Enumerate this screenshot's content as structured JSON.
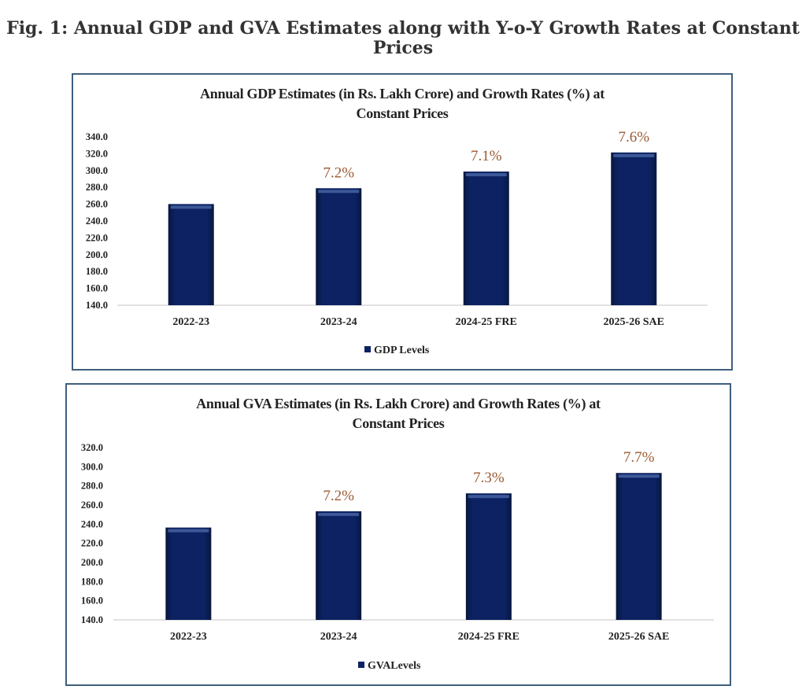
{
  "figure_title": "Fig. 1: Annual GDP and GVA Estimates along with Y-o-Y Growth Rates at Constant Prices",
  "colors": {
    "bar": "#0c2262",
    "growth_label": "#9a5a30",
    "frame": "#3f5f7e"
  },
  "chart_data": [
    {
      "type": "bar",
      "title_line1": "Annual GDP Estimates (in Rs. Lakh Crore) and Growth Rates (%) at",
      "title_line2": "Constant Prices",
      "categories": [
        "2022-23",
        "2023-24",
        "2024-25 FRE",
        "2025-26 SAE"
      ],
      "series": [
        {
          "name": "GDP Levels",
          "values": [
            260.2,
            279.0,
            298.8,
            321.5
          ]
        }
      ],
      "data_labels": [
        "",
        "7.2%",
        "7.1%",
        "7.6%"
      ],
      "ylim": [
        140,
        340
      ],
      "yticks": [
        "140.0",
        "160.0",
        "180.0",
        "200.0",
        "220.0",
        "240.0",
        "260.0",
        "280.0",
        "300.0",
        "320.0",
        "340.0"
      ],
      "grid": false,
      "legend": "bottom"
    },
    {
      "type": "bar",
      "title_line1": "Annual GVA Estimates (in Rs. Lakh Crore) and Growth Rates (%) at",
      "title_line2": "Constant Prices",
      "categories": [
        "2022-23",
        "2023-24",
        "2024-25 FRE",
        "2025-26 SAE"
      ],
      "series": [
        {
          "name": "GVALevels",
          "values": [
            236.5,
            253.5,
            272.2,
            293.5
          ]
        }
      ],
      "data_labels": [
        "",
        "7.2%",
        "7.3%",
        "7.7%"
      ],
      "ylim": [
        140,
        320
      ],
      "yticks": [
        "140.0",
        "160.0",
        "180.0",
        "200.0",
        "220.0",
        "240.0",
        "260.0",
        "280.0",
        "300.0",
        "320.0"
      ],
      "grid": false,
      "legend": "bottom"
    }
  ]
}
